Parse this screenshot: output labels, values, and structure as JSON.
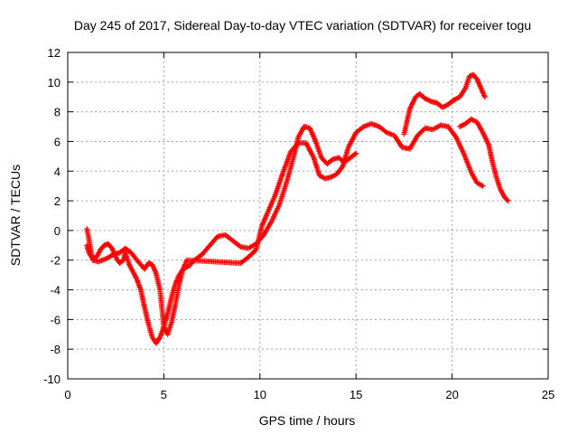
{
  "chart_data": {
    "type": "scatter",
    "title": "Day 245 of 2017, Sidereal Day-to-day VTEC variation (SDTVAR) for receiver togu",
    "xlabel": "GPS time / hours",
    "ylabel": "SDTVAR / TECUs",
    "xlim": [
      0,
      25
    ],
    "ylim": [
      -10,
      12
    ],
    "xticks": [
      0,
      5,
      10,
      15,
      20,
      25
    ],
    "yticks": [
      -10,
      -8,
      -6,
      -4,
      -2,
      0,
      2,
      4,
      6,
      8,
      10,
      12
    ],
    "grid": true,
    "marker": "+",
    "color": "#ff0000",
    "series": [
      {
        "x": [
          1.0,
          1.1,
          1.3,
          1.5,
          1.7,
          1.9,
          2.1,
          2.3,
          2.5,
          2.7,
          2.9,
          3.0,
          3.2,
          3.4,
          3.6,
          3.8,
          4.0,
          4.2,
          4.4,
          4.6,
          4.8,
          5.0,
          5.2,
          5.4,
          5.6,
          5.8,
          6.0,
          6.3,
          6.6,
          7.0,
          7.4,
          7.8,
          8.2,
          8.6,
          9.0,
          9.4,
          9.8,
          10.2,
          10.6,
          11.0,
          11.4,
          11.8,
          12.0,
          12.3,
          12.6,
          12.9,
          13.2,
          13.5,
          13.8,
          14.1,
          14.4,
          14.7,
          15.0
        ],
        "y": [
          -1.0,
          -1.5,
          -1.9,
          -1.8,
          -1.3,
          -1.0,
          -0.9,
          -1.2,
          -1.8,
          -2.2,
          -2.0,
          -1.5,
          -2.3,
          -2.8,
          -3.3,
          -4.0,
          -5.2,
          -6.3,
          -7.2,
          -7.6,
          -7.2,
          -6.5,
          -5.6,
          -4.5,
          -3.6,
          -3.0,
          -2.6,
          -2.4,
          -2.0,
          -1.6,
          -1.0,
          -0.4,
          -0.3,
          -0.7,
          -1.1,
          -1.2,
          -0.9,
          -0.3,
          0.6,
          1.7,
          3.3,
          5.2,
          6.3,
          7.0,
          6.9,
          6.0,
          4.9,
          4.5,
          4.8,
          4.9,
          4.6,
          4.9,
          5.2
        ]
      },
      {
        "x": [
          1.0,
          1.3,
          1.6,
          2.0,
          2.4,
          2.7,
          3.0,
          3.3,
          3.6,
          3.8,
          4.0,
          4.2,
          4.4,
          4.6,
          4.8,
          5.0,
          5.2,
          5.4,
          5.6,
          5.8,
          6.0,
          6.2,
          9.0,
          9.4,
          9.8,
          10.1,
          10.4,
          10.8,
          11.2,
          11.6,
          12.0,
          12.4,
          12.8,
          13.1,
          13.4,
          13.7,
          14.0,
          14.3,
          14.6,
          15.0,
          15.4,
          15.8,
          16.2,
          16.6,
          17.0,
          17.4,
          17.8,
          18.2,
          18.6,
          19.0,
          19.4,
          19.8,
          20.2,
          20.6,
          21.0,
          21.3,
          21.6
        ],
        "y": [
          0.1,
          -2.0,
          -2.1,
          -1.9,
          -1.6,
          -1.5,
          -1.2,
          -1.5,
          -2.0,
          -2.3,
          -2.6,
          -2.2,
          -2.3,
          -2.9,
          -4.0,
          -6.5,
          -7.0,
          -6.2,
          -5.0,
          -3.6,
          -2.6,
          -2.0,
          -2.2,
          -1.8,
          -1.3,
          0.3,
          1.2,
          2.4,
          3.9,
          5.3,
          5.9,
          5.9,
          4.9,
          3.7,
          3.5,
          3.6,
          3.8,
          4.3,
          5.6,
          6.6,
          7.0,
          7.2,
          7.0,
          6.6,
          6.4,
          5.6,
          5.5,
          6.4,
          6.9,
          6.8,
          7.1,
          7.0,
          6.3,
          5.2,
          3.9,
          3.2,
          3.0
        ]
      },
      {
        "x": [
          17.5,
          17.8,
          18.1,
          18.3,
          18.6,
          18.9,
          19.2,
          19.5,
          19.8,
          20.1,
          20.4,
          20.7,
          20.9,
          21.1,
          21.3,
          21.5,
          21.7
        ],
        "y": [
          6.5,
          8.2,
          9.0,
          9.2,
          8.9,
          8.7,
          8.6,
          8.3,
          8.5,
          8.8,
          9.0,
          9.6,
          10.4,
          10.5,
          10.2,
          9.6,
          9.0
        ]
      },
      {
        "x": [
          20.4,
          20.7,
          21.0,
          21.3,
          21.6,
          21.9,
          22.1,
          22.3,
          22.5,
          22.7,
          22.9
        ],
        "y": [
          7.0,
          7.2,
          7.5,
          7.3,
          6.6,
          5.8,
          4.6,
          3.6,
          2.8,
          2.3,
          2.0
        ]
      }
    ]
  }
}
